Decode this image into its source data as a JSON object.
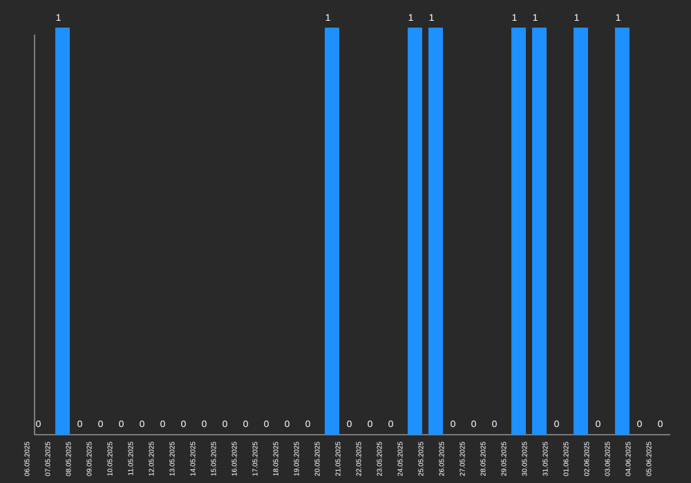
{
  "colors": {
    "background": "#292929",
    "bar": "#1e90ff",
    "text": "#ffffff",
    "axis": "#ffffff"
  },
  "chart_data": {
    "type": "bar",
    "categories": [
      "06.05.2025",
      "07.05.2025",
      "08.05.2025",
      "09.05.2025",
      "10.05.2025",
      "11.05.2025",
      "12.05.2025",
      "13.05.2025",
      "14.05.2025",
      "15.05.2025",
      "16.05.2025",
      "17.05.2025",
      "18.05.2025",
      "19.05.2025",
      "20.05.2025",
      "21.05.2025",
      "22.05.2025",
      "23.05.2025",
      "24.05.2025",
      "25.05.2025",
      "26.05.2025",
      "27.05.2025",
      "28.05.2025",
      "29.05.2025",
      "30.05.2025",
      "31.05.2025",
      "01.06.2025",
      "02.06.2025",
      "03.06.2025",
      "04.06.2025",
      "05.06.2025"
    ],
    "values": [
      0,
      1,
      0,
      0,
      0,
      0,
      0,
      0,
      0,
      0,
      0,
      0,
      0,
      0,
      1,
      0,
      0,
      0,
      1,
      1,
      0,
      0,
      0,
      1,
      1,
      0,
      1,
      0,
      1,
      0,
      0
    ],
    "title": "",
    "xlabel": "",
    "ylabel": "",
    "ylim": [
      0,
      1
    ],
    "grid": false,
    "legend": "none",
    "data_labels": true
  }
}
